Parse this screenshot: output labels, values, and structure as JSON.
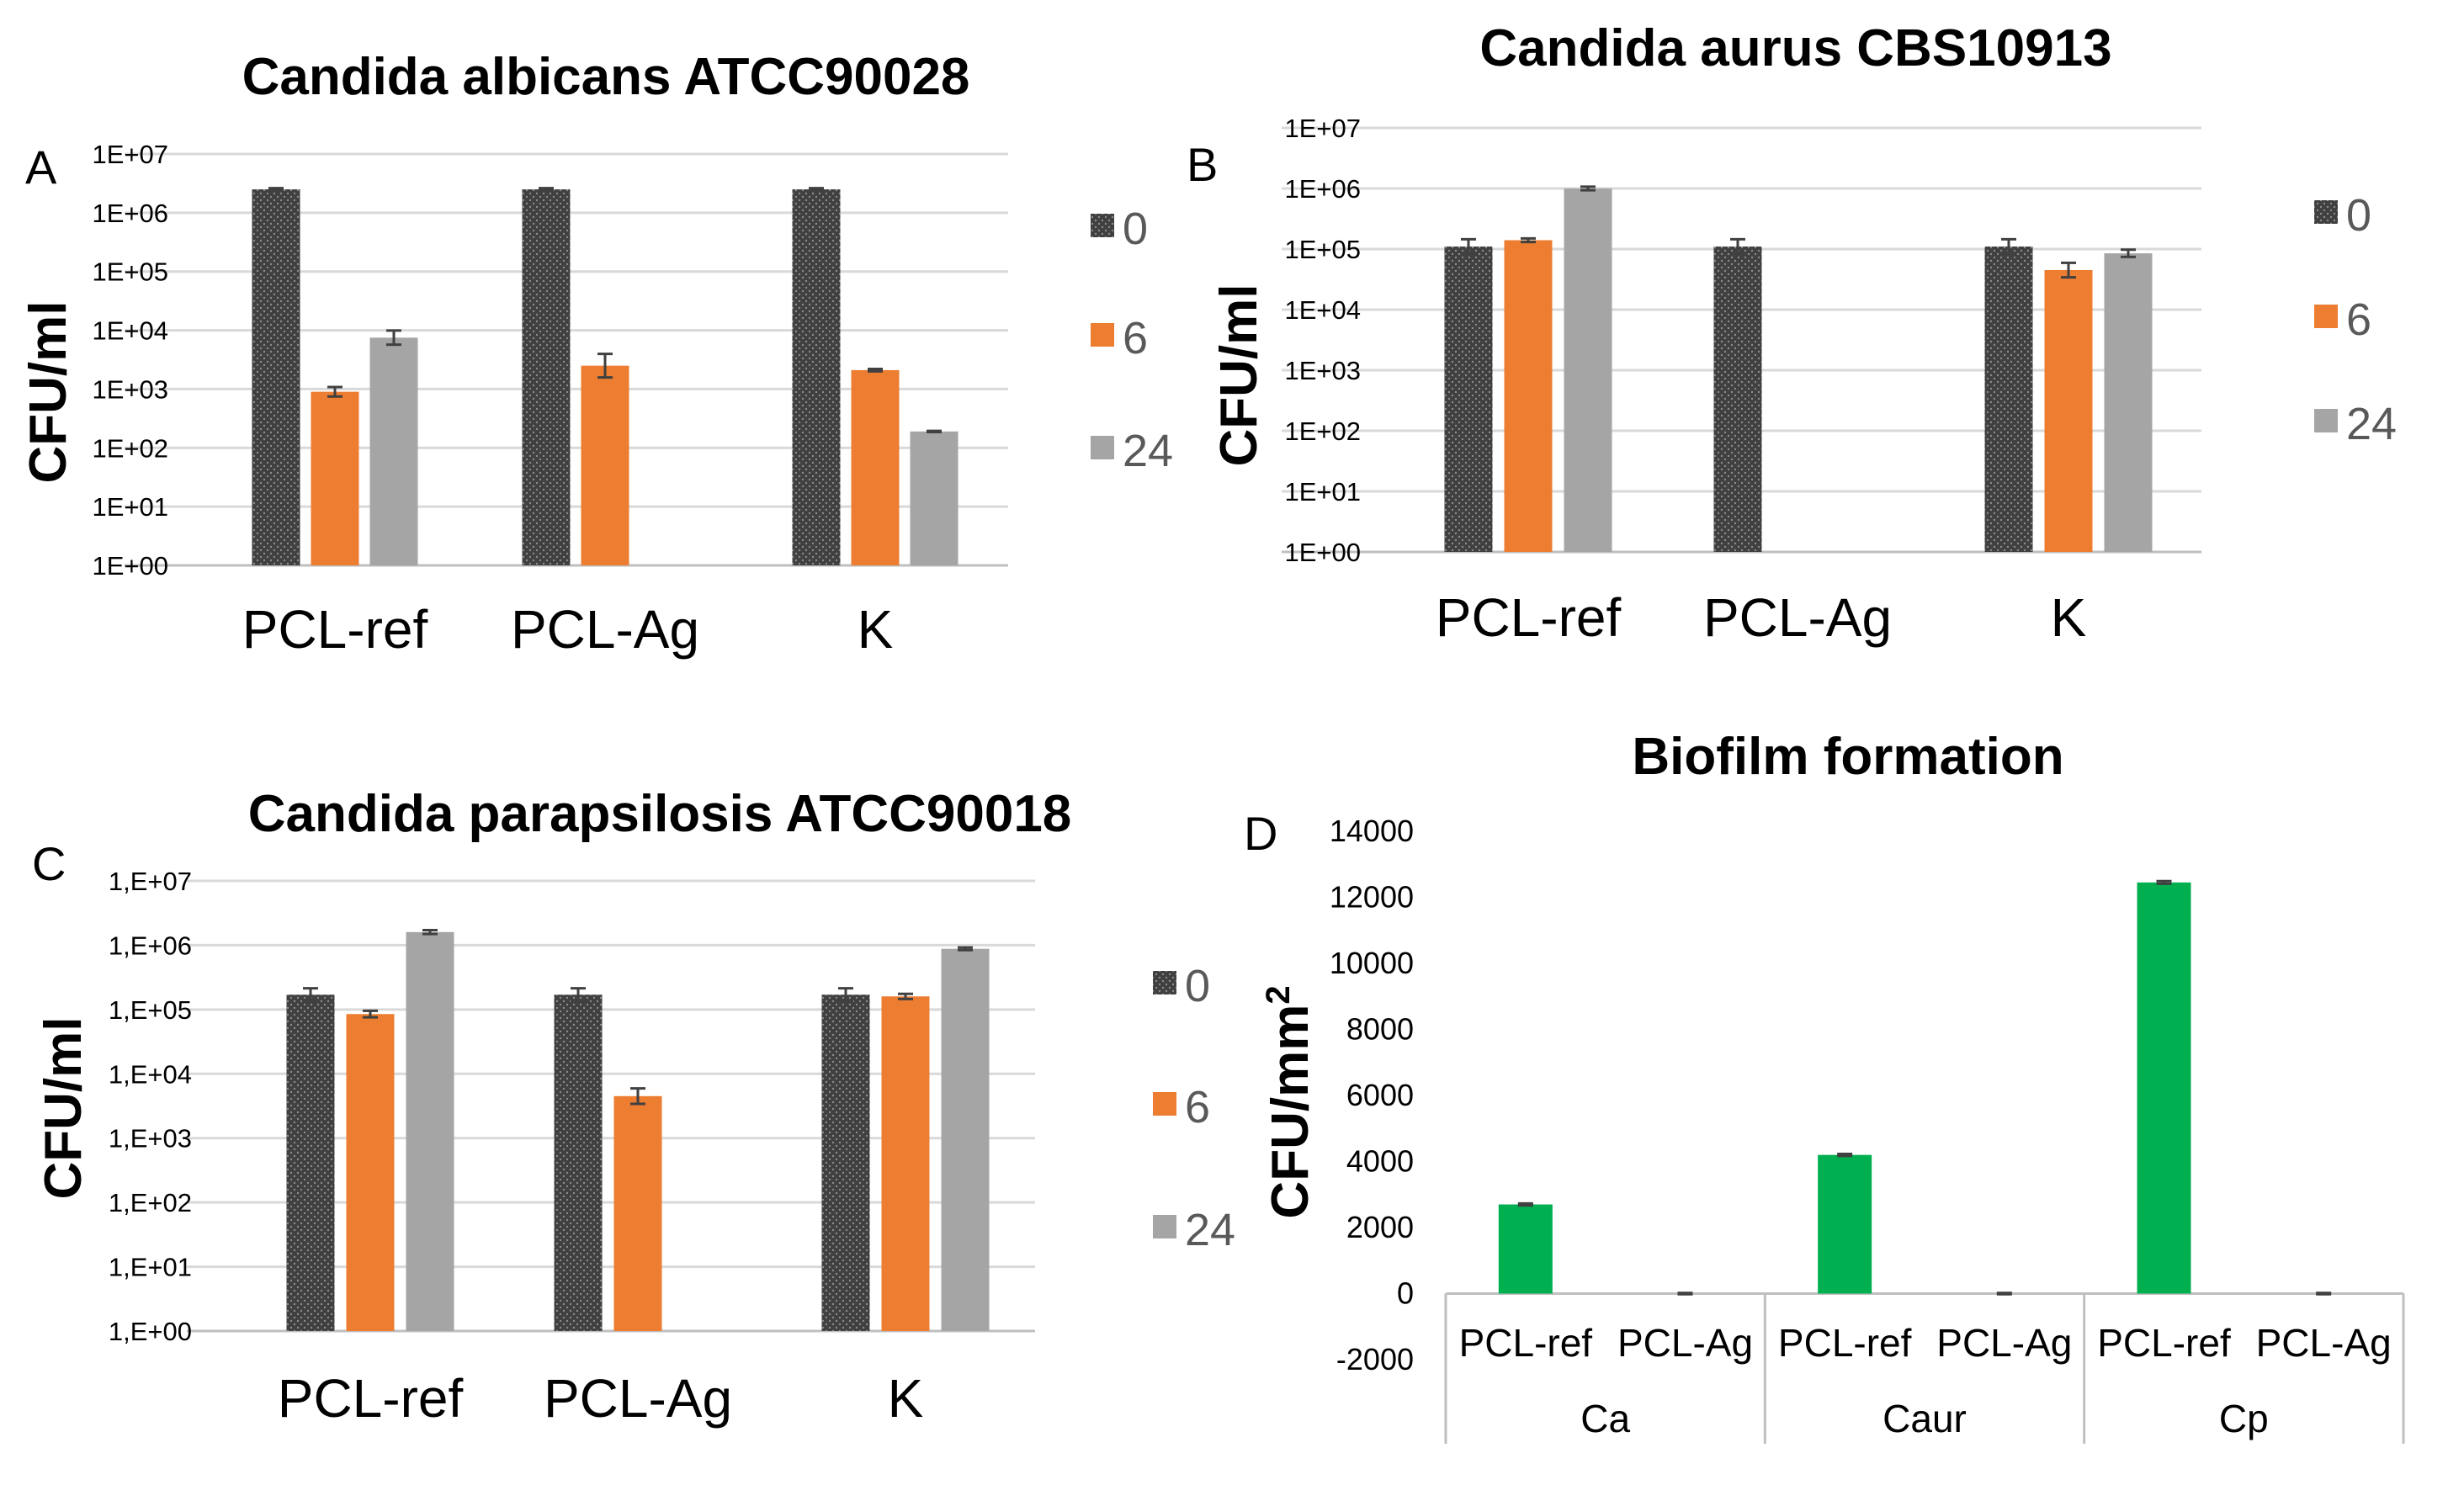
{
  "chart_data": [
    {
      "panel": "A",
      "type": "bar",
      "title": "Candida albicans ATCC90028",
      "xlabel": "",
      "ylabel": "CFU/ml",
      "scale": "log",
      "ylim_exp": [
        0,
        7
      ],
      "yticks": [
        "1E+00",
        "1E+01",
        "1E+02",
        "1E+03",
        "1E+04",
        "1E+05",
        "1E+06",
        "1E+07"
      ],
      "categories": [
        "PCL-ref",
        "PCL-Ag",
        "K"
      ],
      "series": [
        {
          "name": "0",
          "values": [
            2500000,
            2500000,
            2500000
          ],
          "errors": [
            0.02,
            0.02,
            0.02
          ]
        },
        {
          "name": "6",
          "values": [
            900,
            2500,
            2100
          ],
          "errors": [
            0.08,
            0.2,
            0.02
          ]
        },
        {
          "name": "24",
          "values": [
            7500,
            null,
            190
          ],
          "errors": [
            0.12,
            null,
            0.01
          ]
        }
      ],
      "legend": "right"
    },
    {
      "panel": "B",
      "type": "bar",
      "title": "Candida aurus CBS10913",
      "xlabel": "",
      "ylabel": "CFU/ml",
      "scale": "log",
      "ylim_exp": [
        0,
        7
      ],
      "yticks": [
        "1E+00",
        "1E+01",
        "1E+02",
        "1E+03",
        "1E+04",
        "1E+05",
        "1E+06",
        "1E+07"
      ],
      "categories": [
        "PCL-ref",
        "PCL-Ag",
        "K"
      ],
      "series": [
        {
          "name": "0",
          "values": [
            110000,
            110000,
            110000
          ],
          "errors": [
            0.12,
            0.12,
            0.12
          ]
        },
        {
          "name": "6",
          "values": [
            140000,
            null,
            45000
          ],
          "errors": [
            0.03,
            null,
            0.12
          ]
        },
        {
          "name": "24",
          "values": [
            1000000,
            null,
            85000
          ],
          "errors": [
            0.03,
            null,
            0.06
          ]
        }
      ],
      "legend": "right"
    },
    {
      "panel": "C",
      "type": "bar",
      "title": "Candida parapsilosis ATCC90018",
      "xlabel": "",
      "ylabel": "CFU/ml",
      "scale": "log",
      "ylim_exp": [
        0,
        7
      ],
      "yticks": [
        "1,E+00",
        "1,E+01",
        "1,E+02",
        "1,E+03",
        "1,E+04",
        "1,E+05",
        "1,E+06",
        "1,E+07"
      ],
      "categories": [
        "PCL-ref",
        "PCL-Ag",
        "K"
      ],
      "series": [
        {
          "name": "0",
          "values": [
            170000,
            170000,
            170000
          ],
          "errors": [
            0.1,
            0.1,
            0.1
          ]
        },
        {
          "name": "6",
          "values": [
            85000,
            4500,
            160000
          ],
          "errors": [
            0.05,
            0.12,
            0.04
          ]
        },
        {
          "name": "24",
          "values": [
            1600000,
            null,
            880000
          ],
          "errors": [
            0.03,
            null,
            0.02
          ]
        }
      ],
      "legend": "right"
    },
    {
      "panel": "D",
      "type": "bar",
      "title": "Biofilm formation",
      "xlabel": "",
      "ylabel": "CFU/mm",
      "ylabel_sup": "2",
      "scale": "linear",
      "ylim": [
        -2000,
        14000
      ],
      "yticks": [
        -2000,
        0,
        2000,
        4000,
        6000,
        8000,
        10000,
        12000,
        14000
      ],
      "groups": [
        "Ca",
        "Caur",
        "Cp"
      ],
      "categories": [
        "PCL-ref",
        "PCL-Ag",
        "PCL-ref",
        "PCL-Ag",
        "PCL-ref",
        "PCL-Ag"
      ],
      "values": [
        2700,
        0,
        4200,
        0,
        12450,
        0
      ],
      "errors": [
        30,
        20,
        30,
        20,
        40,
        20
      ],
      "color": "#00b050"
    }
  ],
  "legend_swatches": {
    "0": "#404040",
    "6": "#ed7d31",
    "24": "#a5a5a5"
  }
}
